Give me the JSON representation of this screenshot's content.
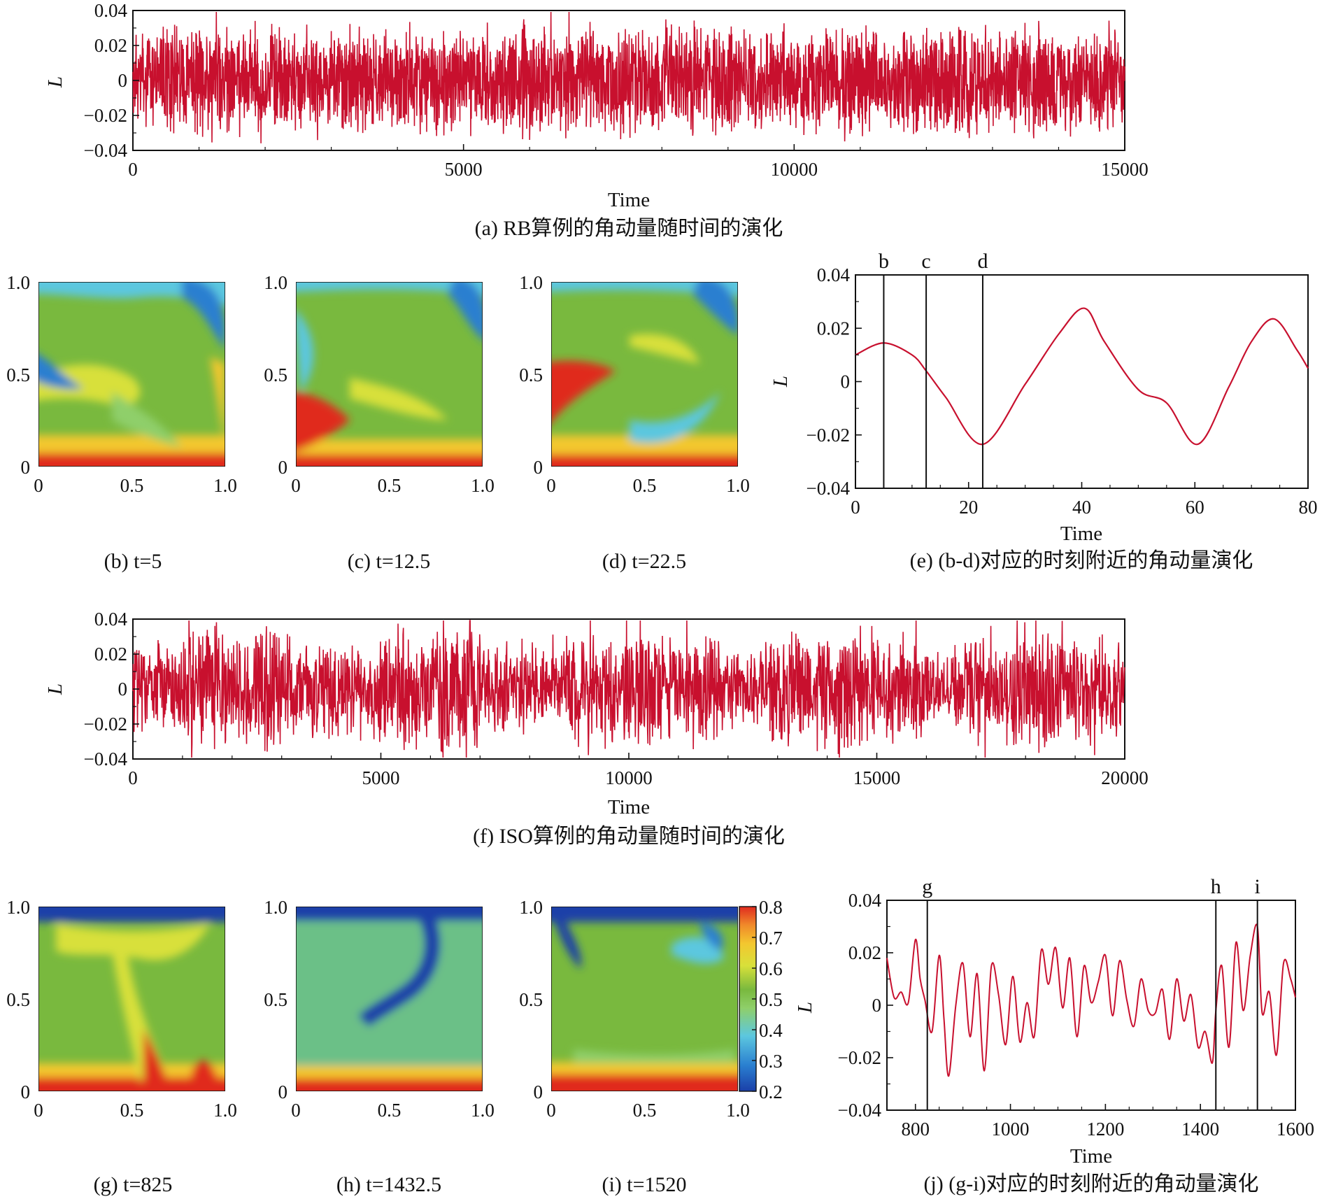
{
  "colors": {
    "line": "#c8102e",
    "frame": "#111111",
    "colormap": [
      "#1a3fa8",
      "#2a7fd0",
      "#5cc7df",
      "#8fcf6a",
      "#79b93e",
      "#d8e03a",
      "#f3c72f",
      "#f08a2a",
      "#e02b1f"
    ]
  },
  "captions": {
    "a": "(a) RB算例的角动量随时间的演化",
    "b": "(b) t=5",
    "c": "(c) t=12.5",
    "d": "(d) t=22.5",
    "e": "(e) (b-d)对应的时刻附近的角动量演化",
    "f": "(f) ISO算例的角动量随时间的演化",
    "g": "(g) t=825",
    "h": "(h) t=1432.5",
    "i": "(i) t=1520",
    "j": "(j) (g-i)对应的时刻附近的角动量演化"
  },
  "chart_data": [
    {
      "id": "a",
      "type": "line",
      "xlabel": "Time",
      "ylabel": "L",
      "xlim": [
        0,
        15000
      ],
      "ylim": [
        -0.04,
        0.04
      ],
      "xticks": [
        "0",
        "5000",
        "10000",
        "15000"
      ],
      "yticks": [
        "−0.04",
        "−0.02",
        "0",
        "0.02",
        "0.04"
      ],
      "signal": "dense oscillation, amplitude about ±0.03"
    },
    {
      "id": "e",
      "type": "line",
      "xlabel": "Time",
      "ylabel": "L",
      "xlim": [
        0,
        80
      ],
      "ylim": [
        -0.04,
        0.04
      ],
      "xticks": [
        "0",
        "20",
        "40",
        "60",
        "80"
      ],
      "yticks": [
        "−0.04",
        "−0.02",
        "0",
        "0.02",
        "0.04"
      ],
      "x": [
        0,
        5,
        10,
        12.5,
        16,
        22.5,
        30,
        36,
        40.5,
        44,
        50,
        55,
        60.5,
        66,
        70,
        74,
        78,
        80
      ],
      "y": [
        0.01,
        0.0145,
        0.01,
        0.004,
        -0.006,
        -0.0235,
        -0.001,
        0.018,
        0.0275,
        0.015,
        -0.003,
        -0.008,
        -0.0235,
        -0.002,
        0.015,
        0.0235,
        0.012,
        0.005
      ],
      "markers": [
        {
          "label": "b",
          "x": 5
        },
        {
          "label": "c",
          "x": 12.5
        },
        {
          "label": "d",
          "x": 22.5
        }
      ]
    },
    {
      "id": "f",
      "type": "line",
      "xlabel": "Time",
      "ylabel": "L",
      "xlim": [
        0,
        20000
      ],
      "ylim": [
        -0.04,
        0.04
      ],
      "xticks": [
        "0",
        "5000",
        "10000",
        "15000",
        "20000"
      ],
      "yticks": [
        "−0.04",
        "−0.02",
        "0",
        "0.02",
        "0.04"
      ],
      "signal": "bursty oscillation, amplitude up to about ±0.035"
    },
    {
      "id": "j",
      "type": "line",
      "xlabel": "Time",
      "ylabel": "L",
      "xlim": [
        740,
        1600
      ],
      "ylim": [
        -0.04,
        0.04
      ],
      "xticks": [
        "800",
        "1000",
        "1200",
        "1400",
        "1600"
      ],
      "yticks": [
        "−0.04",
        "−0.02",
        "0",
        "0.02",
        "0.04"
      ],
      "x": [
        740,
        755,
        770,
        785,
        800,
        810,
        820,
        835,
        850,
        860,
        870,
        885,
        900,
        915,
        930,
        945,
        960,
        975,
        990,
        1005,
        1020,
        1035,
        1050,
        1065,
        1080,
        1095,
        1110,
        1125,
        1140,
        1155,
        1170,
        1185,
        1200,
        1215,
        1230,
        1245,
        1260,
        1275,
        1290,
        1305,
        1320,
        1335,
        1350,
        1365,
        1380,
        1395,
        1410,
        1425,
        1432.5,
        1445,
        1460,
        1475,
        1490,
        1505,
        1520,
        1530,
        1545,
        1560,
        1575,
        1590,
        1600
      ],
      "y": [
        0.018,
        0.003,
        0.005,
        0.001,
        0.025,
        0.01,
        0.002,
        -0.01,
        0.019,
        -0.005,
        -0.027,
        0.0,
        0.016,
        -0.012,
        0.012,
        -0.025,
        0.015,
        0.004,
        -0.015,
        0.011,
        -0.014,
        0.001,
        -0.012,
        0.021,
        0.008,
        0.022,
        -0.001,
        0.018,
        -0.012,
        0.015,
        0.001,
        0.009,
        0.019,
        -0.004,
        0.017,
        0.002,
        -0.008,
        0.01,
        -0.002,
        -0.003,
        0.006,
        -0.013,
        0.01,
        -0.006,
        0.004,
        -0.016,
        -0.01,
        -0.022,
        -0.002,
        0.015,
        -0.016,
        0.024,
        -0.002,
        0.019,
        0.03,
        -0.003,
        0.005,
        -0.019,
        0.016,
        0.01,
        0.003
      ],
      "markers": [
        {
          "label": "g",
          "x": 825
        },
        {
          "label": "h",
          "x": 1432.5
        },
        {
          "label": "i",
          "x": 1520
        }
      ]
    },
    {
      "id": "fields",
      "type": "heatmap",
      "panels": [
        "b",
        "c",
        "d",
        "g",
        "h",
        "i"
      ],
      "xticks": [
        "0",
        "0.5",
        "1.0"
      ],
      "yticks": [
        "0",
        "0.5",
        "1.0"
      ],
      "colorbar": {
        "range": [
          0.2,
          0.8
        ],
        "ticks": [
          "0.8",
          "0.7",
          "0.6",
          "0.5",
          "0.4",
          "0.3",
          "0.2"
        ]
      }
    }
  ]
}
